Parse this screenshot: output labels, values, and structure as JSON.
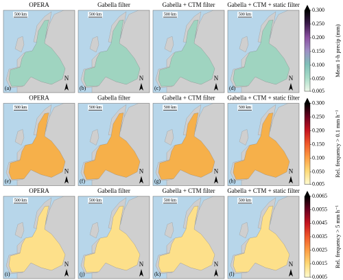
{
  "rows": [
    {
      "panels": [
        {
          "title": "OPERA",
          "label": "(a)",
          "scale": "500 km",
          "north": "N"
        },
        {
          "title": "Gabella filter",
          "label": "(b)",
          "scale": "500 km",
          "north": "N"
        },
        {
          "title": "Gabella + CTM filter",
          "label": "(c)",
          "scale": "500 km",
          "north": "N"
        },
        {
          "title": "Gabella + CTM + static filter",
          "label": "(d)",
          "scale": "500 km",
          "north": "N"
        }
      ],
      "colorbar": {
        "label": "Mean 1-h precip (mm)",
        "range": [
          0.005,
          0.3
        ],
        "ticks": [
          0.005,
          {
            "value": 0.05,
            "label": "0.050"
          },
          {
            "value": 0.1,
            "label": "0.100"
          },
          {
            "value": 0.15,
            "label": "0.150"
          },
          {
            "value": 0.2,
            "label": "0.200"
          },
          {
            "value": 0.25,
            "label": "0.250"
          },
          {
            "value": 0.3,
            "label": "0.300"
          }
        ],
        "colors": [
          "#eef8ea",
          "#a8dcc8",
          "#7fbfb8",
          "#9d8fc4",
          "#8a4fa0",
          "#3a1a4a",
          "#000000"
        ],
        "map_color": "#9fd4c0"
      }
    },
    {
      "panels": [
        {
          "title": "OPERA",
          "label": "(e)",
          "scale": "500 km",
          "north": "N"
        },
        {
          "title": "Gabella filter",
          "label": "(f)",
          "scale": "500 km",
          "north": "N"
        },
        {
          "title": "Gabella + CTM filter",
          "label": "(g)",
          "scale": "500 km",
          "north": "N"
        },
        {
          "title": "Gabella + CTM + static filter",
          "label": "(h)",
          "scale": "500 km",
          "north": "N"
        }
      ],
      "colorbar": {
        "label": "Rel. frequency > 0.1 mm h⁻¹",
        "range": [
          0.005,
          0.3
        ],
        "ticks": [
          0.005,
          {
            "value": 0.05,
            "label": "0.050"
          },
          {
            "value": 0.1,
            "label": "0.100"
          },
          {
            "value": 0.15,
            "label": "0.150"
          },
          {
            "value": 0.2,
            "label": "0.200"
          },
          {
            "value": 0.25,
            "label": "0.250"
          },
          {
            "value": 0.3,
            "label": "0.300"
          }
        ],
        "colors": [
          "#fffbd0",
          "#fed976",
          "#fd9d43",
          "#f0582a",
          "#c5141f",
          "#6a0020",
          "#000000"
        ],
        "map_color": "#f6b04a"
      }
    },
    {
      "panels": [
        {
          "title": "OPERA",
          "label": "(i)",
          "scale": "500 km",
          "north": "N"
        },
        {
          "title": "Gabella filter",
          "label": "(j)",
          "scale": "500 km",
          "north": "N"
        },
        {
          "title": "Gabella + CTM filter",
          "label": "(k)",
          "scale": "500 km",
          "north": "N"
        },
        {
          "title": "Gabella + CTM + static filter",
          "label": "(l)",
          "scale": "500 km",
          "north": "N"
        }
      ],
      "colorbar": {
        "label": "Rel. frequency > 5 mm h⁻¹",
        "range": [
          0.0005,
          0.0065
        ],
        "ticks": [
          0.0005,
          0.0015,
          0.0025,
          0.0035,
          0.0045,
          0.0055,
          0.0065
        ],
        "colors": [
          "#fffbd0",
          "#fed976",
          "#fd9d43",
          "#f0582a",
          "#c5141f",
          "#6a0020",
          "#000000"
        ],
        "map_color": "#fde08a"
      }
    }
  ]
}
